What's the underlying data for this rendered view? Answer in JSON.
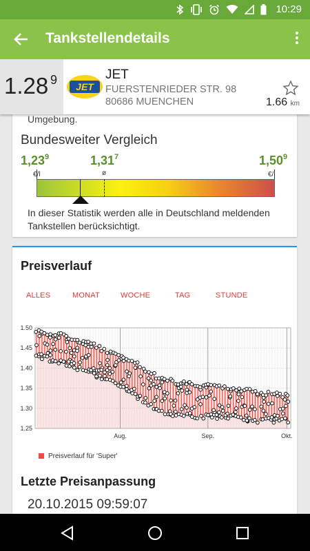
{
  "status_bar": {
    "time": "10:29",
    "icons": [
      "bluetooth-icon",
      "vibrate-icon",
      "alarm-icon",
      "wifi-icon",
      "signal-icon",
      "battery-icon"
    ]
  },
  "app_bar": {
    "title": "Tankstellendetails"
  },
  "station": {
    "price_main": "1.28",
    "price_sup": "9",
    "brand": "JET",
    "logo_text": "JET",
    "street": "FUERSTENRIEDER STR. 98",
    "city": "80686 MUENCHEN",
    "distance": "1.66",
    "distance_unit": "km"
  },
  "comparison": {
    "top_text": "Umgebung.",
    "title": "Bundesweiter Vergleich",
    "min_main": "1,23",
    "min_sup": "9",
    "avg_main": "1,31",
    "avg_sup": "7",
    "max_main": "1,50",
    "max_sup": "9",
    "unit_left": "€/l",
    "avg_symbol": "ø",
    "unit_right": "€/l",
    "note": "In dieser Statistik werden alle in Deutschland meldenden Tankstellen berücksichtigt."
  },
  "price_history": {
    "title": "Preisverlauf",
    "tabs": [
      "ALLES",
      "MONAT",
      "WOCHE",
      "TAG",
      "STUNDE"
    ],
    "legend": "Preisverlauf für 'Super'"
  },
  "chart_data": {
    "type": "scatter",
    "title": "",
    "xlabel": "",
    "ylabel": "",
    "x_tick_labels": [
      "Aug.",
      "Sep.",
      "Okt."
    ],
    "y_tick_labels": [
      "1.50",
      "1.45",
      "1.40",
      "1.35",
      "1.30",
      "1.25"
    ],
    "ylim": [
      1.25,
      1.5
    ],
    "grid": true,
    "legend_position": "bottom-left",
    "series": [
      {
        "name": "Preisverlauf für 'Super'",
        "color": "#f44336",
        "x": [
          "Juli (Ende)",
          "Aug.",
          "Aug. (Mitte)",
          "Aug. (Ende)",
          "Sep.",
          "Sep. (Mitte)",
          "Sep. (Ende)",
          "Okt.",
          "Okt. (Mitte)"
        ],
        "high": [
          1.49,
          1.48,
          1.45,
          1.42,
          1.37,
          1.36,
          1.35,
          1.34,
          1.33
        ],
        "low": [
          1.43,
          1.41,
          1.38,
          1.34,
          1.29,
          1.28,
          1.28,
          1.27,
          1.27
        ]
      }
    ]
  },
  "last_update": {
    "title": "Letzte Preisanpassung",
    "datetime": "20.10.2015 09:59:07"
  }
}
